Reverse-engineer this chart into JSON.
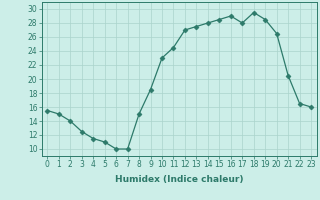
{
  "x": [
    0,
    1,
    2,
    3,
    4,
    5,
    6,
    7,
    8,
    9,
    10,
    11,
    12,
    13,
    14,
    15,
    16,
    17,
    18,
    19,
    20,
    21,
    22,
    23
  ],
  "y": [
    15.5,
    15.0,
    14.0,
    12.5,
    11.5,
    11.0,
    10.0,
    10.0,
    15.0,
    18.5,
    23.0,
    24.5,
    27.0,
    27.5,
    28.0,
    28.5,
    29.0,
    28.0,
    29.5,
    28.5,
    26.5,
    20.5,
    16.5,
    16.0
  ],
  "line_color": "#2d7a6a",
  "marker": "D",
  "markersize": 2.5,
  "xlabel": "Humidex (Indice chaleur)",
  "ylabel": "",
  "xlim": [
    -0.5,
    23.5
  ],
  "ylim": [
    9,
    31
  ],
  "yticks": [
    10,
    12,
    14,
    16,
    18,
    20,
    22,
    24,
    26,
    28,
    30
  ],
  "xticks": [
    0,
    1,
    2,
    3,
    4,
    5,
    6,
    7,
    8,
    9,
    10,
    11,
    12,
    13,
    14,
    15,
    16,
    17,
    18,
    19,
    20,
    21,
    22,
    23
  ],
  "bg_color": "#cceee8",
  "grid_color": "#aad4cc",
  "label_fontsize": 6.5,
  "tick_fontsize": 5.5
}
